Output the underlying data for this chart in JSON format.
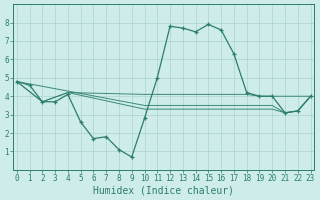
{
  "title": "",
  "xlabel": "Humidex (Indice chaleur)",
  "ylabel": "",
  "bg_color": "#cdecea",
  "grid_color": "#b0d8d2",
  "line_color": "#2d7d6e",
  "main_series": {
    "x": [
      0,
      1,
      2,
      3,
      4,
      5,
      6,
      7,
      8,
      9,
      10,
      11,
      12,
      13,
      14,
      15,
      16,
      17,
      18,
      19,
      20,
      21,
      22,
      23
    ],
    "y": [
      4.8,
      4.6,
      3.7,
      3.7,
      4.1,
      2.6,
      1.7,
      1.8,
      1.1,
      0.7,
      2.8,
      5.0,
      7.8,
      7.7,
      7.5,
      7.9,
      7.6,
      6.3,
      4.2,
      4.0,
      4.0,
      3.1,
      3.2,
      4.0
    ]
  },
  "flat_series": [
    {
      "x": [
        0,
        2,
        4,
        10,
        11,
        12,
        13,
        14,
        15,
        16,
        17,
        18,
        19,
        20,
        23
      ],
      "y": [
        4.8,
        3.7,
        4.2,
        4.1,
        4.1,
        4.1,
        4.1,
        4.1,
        4.1,
        4.1,
        4.1,
        4.1,
        4.0,
        4.0,
        4.0
      ]
    },
    {
      "x": [
        0,
        10,
        11,
        12,
        13,
        14,
        15,
        16,
        17,
        18,
        19,
        20,
        21,
        22,
        23
      ],
      "y": [
        4.8,
        3.5,
        3.5,
        3.5,
        3.5,
        3.5,
        3.5,
        3.5,
        3.5,
        3.5,
        3.5,
        3.5,
        3.1,
        3.2,
        4.0
      ]
    },
    {
      "x": [
        0,
        2,
        4,
        10,
        11,
        12,
        13,
        14,
        15,
        16,
        17,
        18,
        19,
        20,
        21,
        22,
        23
      ],
      "y": [
        4.8,
        3.7,
        4.2,
        3.3,
        3.3,
        3.3,
        3.3,
        3.3,
        3.3,
        3.3,
        3.3,
        3.3,
        3.3,
        3.3,
        3.1,
        3.2,
        4.0
      ]
    }
  ],
  "xlim": [
    0,
    23
  ],
  "ylim": [
    0,
    9
  ],
  "xtick_labels": [
    "0",
    "1",
    "2",
    "3",
    "4",
    "5",
    "6",
    "7",
    "8",
    "9",
    "10",
    "11",
    "12",
    "13",
    "14",
    "15",
    "16",
    "17",
    "18",
    "19",
    "20",
    "21",
    "22",
    "23"
  ],
  "ytick_labels": [
    "1",
    "2",
    "3",
    "4",
    "5",
    "6",
    "7",
    "8"
  ],
  "tick_fontsize": 5.5,
  "label_fontsize": 7
}
